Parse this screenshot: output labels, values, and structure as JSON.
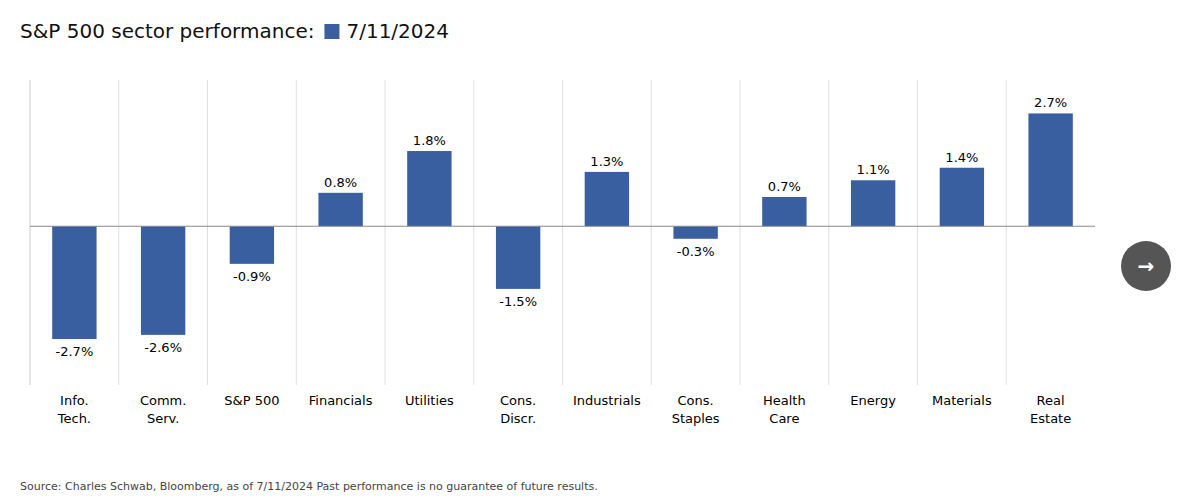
{
  "chart_data": {
    "type": "bar",
    "title": "S&P 500 sector performance:",
    "categories": [
      "Info.\nTech.",
      "Comm.\nServ.",
      "S&P 500",
      "Financials",
      "Utilities",
      "Cons.\nDiscr.",
      "Industrials",
      "Cons.\nStaples",
      "Health\nCare",
      "Energy",
      "Materials",
      "Real\nEstate"
    ],
    "series": [
      {
        "name": "7/11/2024",
        "color": "#3a5fa0",
        "values": [
          -2.7,
          -2.6,
          -0.9,
          0.8,
          1.8,
          -1.5,
          1.3,
          -0.3,
          0.7,
          1.1,
          1.4,
          2.7
        ],
        "value_labels": [
          "-2.7%",
          "-2.6%",
          "-0.9%",
          "0.8%",
          "1.8%",
          "-1.5%",
          "1.3%",
          "-0.3%",
          "0.7%",
          "1.1%",
          "1.4%",
          "2.7%"
        ]
      }
    ],
    "ylim": [
      -3.8,
      3.5
    ],
    "tick_labels": "x",
    "data_labels": true,
    "legend": "top",
    "grid": "x",
    "annotations": [
      "Source: Charles Schwab, Bloomberg, as of 7/11/2024 Past performance is no guarantee of future results.",
      "→"
    ]
  }
}
